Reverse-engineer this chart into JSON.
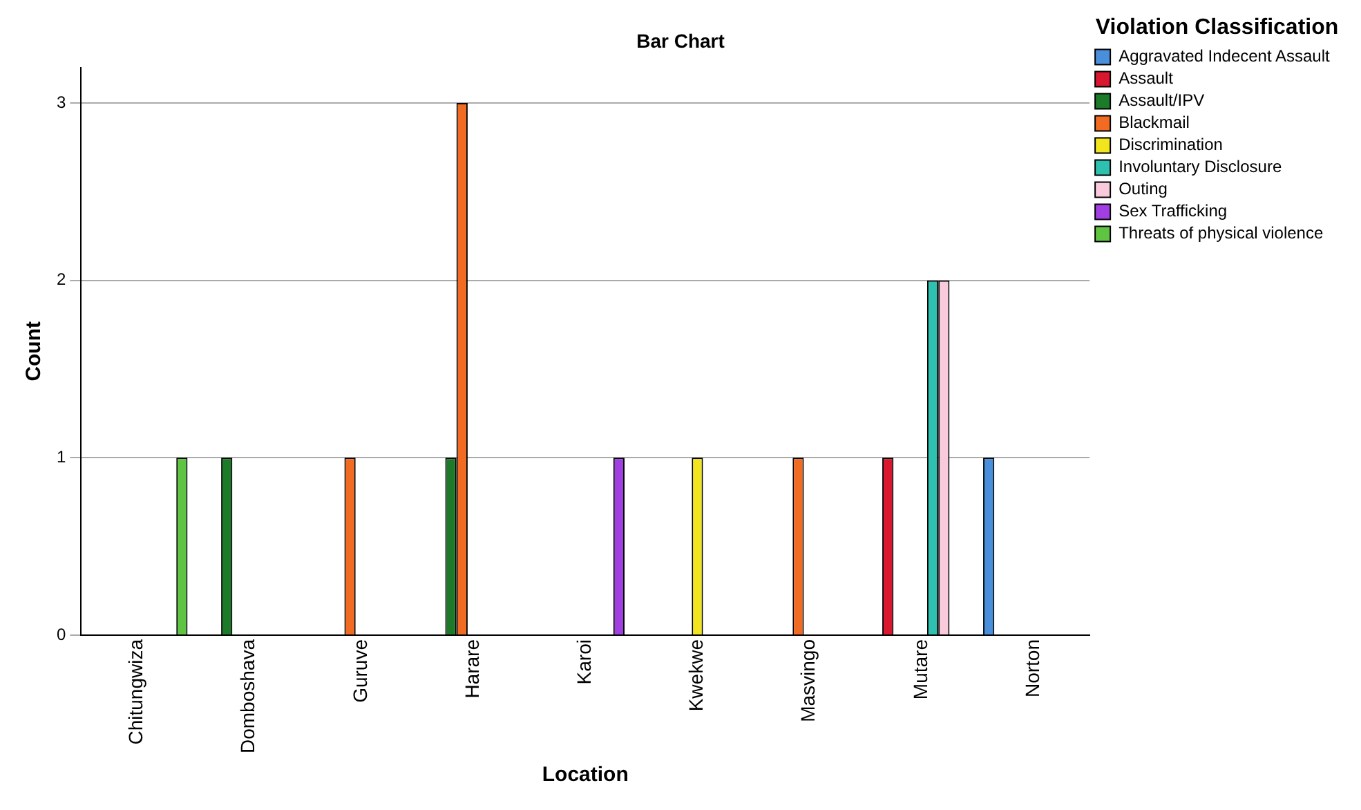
{
  "chart_data": {
    "type": "bar",
    "title": "Bar Chart",
    "xlabel": "Location",
    "ylabel": "Count",
    "legend_title": "Violation Classification",
    "categories": [
      "Chitungwiza",
      "Domboshava",
      "Guruve",
      "Harare",
      "Karoi",
      "Kwekwe",
      "Masvingo",
      "Mutare",
      "Norton"
    ],
    "series": [
      {
        "name": "Aggravated Indecent Assault",
        "color": "#4a8fdc",
        "values": [
          null,
          null,
          null,
          null,
          null,
          null,
          null,
          null,
          1
        ]
      },
      {
        "name": "Assault",
        "color": "#d9172e",
        "values": [
          null,
          null,
          null,
          null,
          null,
          null,
          null,
          1,
          null
        ]
      },
      {
        "name": "Assault/IPV",
        "color": "#1c7a28",
        "values": [
          null,
          1,
          null,
          1,
          null,
          null,
          null,
          null,
          null
        ]
      },
      {
        "name": "Blackmail",
        "color": "#f26b22",
        "values": [
          null,
          null,
          1,
          3,
          null,
          null,
          1,
          null,
          null
        ]
      },
      {
        "name": "Discrimination",
        "color": "#f2e51e",
        "values": [
          null,
          null,
          null,
          null,
          null,
          1,
          null,
          null,
          null
        ]
      },
      {
        "name": "Involuntary Disclosure",
        "color": "#2fc1b0",
        "values": [
          null,
          null,
          null,
          null,
          null,
          null,
          null,
          2,
          null
        ]
      },
      {
        "name": "Outing",
        "color": "#f9c9dc",
        "values": [
          null,
          null,
          null,
          null,
          null,
          null,
          null,
          2,
          null
        ]
      },
      {
        "name": "Sex Trafficking",
        "color": "#a23fe3",
        "values": [
          null,
          null,
          null,
          null,
          1,
          null,
          null,
          null,
          null
        ]
      },
      {
        "name": "Threats of physical violence",
        "color": "#5fc441",
        "values": [
          1,
          null,
          null,
          null,
          null,
          null,
          null,
          null,
          null
        ]
      }
    ],
    "ylim": [
      0,
      3.2
    ],
    "yticks": [
      0,
      1,
      2,
      3
    ],
    "grid": "y",
    "legend": "right"
  }
}
